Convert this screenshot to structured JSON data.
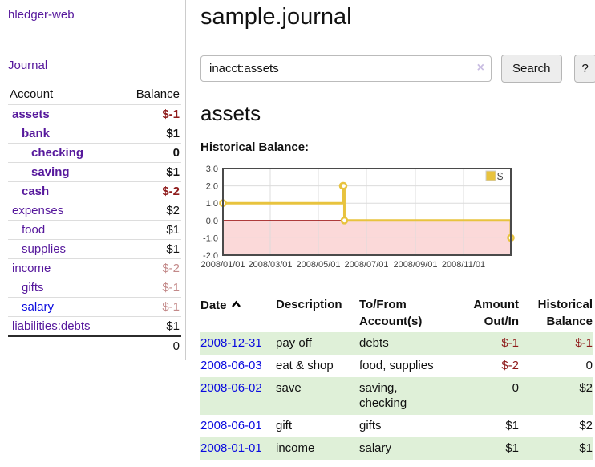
{
  "app": {
    "title": "hledger-web",
    "nav_journal": "Journal"
  },
  "sidebar": {
    "accounts_header": {
      "account": "Account",
      "balance": "Balance"
    },
    "accounts": [
      {
        "name": "assets",
        "indent": 1,
        "bold": true,
        "balance": "$-1"
      },
      {
        "name": "bank",
        "indent": 2,
        "bold": true,
        "balance": "$1"
      },
      {
        "name": "checking",
        "indent": 3,
        "bold": true,
        "balance": "0"
      },
      {
        "name": "saving",
        "indent": 3,
        "bold": true,
        "balance": "$1"
      },
      {
        "name": "cash",
        "indent": 2,
        "bold": true,
        "balance": "$-2"
      },
      {
        "name": "expenses",
        "indent": 1,
        "bold": false,
        "balance": "$2"
      },
      {
        "name": "food",
        "indent": 2,
        "bold": false,
        "balance": "$1"
      },
      {
        "name": "supplies",
        "indent": 2,
        "bold": false,
        "balance": "$1"
      },
      {
        "name": "income",
        "indent": 1,
        "bold": false,
        "balance": "$-2"
      },
      {
        "name": "gifts",
        "indent": 2,
        "bold": false,
        "balance": "$-1"
      },
      {
        "name": "salary",
        "indent": 2,
        "bold": false,
        "balance": "$-1"
      },
      {
        "name": "liabilities:debts",
        "indent": 1,
        "bold": false,
        "balance": "$1"
      }
    ],
    "total_balance": "0"
  },
  "header": {
    "title": "sample.journal"
  },
  "search": {
    "value": "inacct:assets",
    "button_label": "Search",
    "help_label": "?"
  },
  "icons": {
    "clear": "×"
  },
  "account_page": {
    "title": "assets",
    "chart_label": "Historical Balance:"
  },
  "chart_data": {
    "type": "line",
    "step": true,
    "title": "Historical Balance",
    "series": [
      {
        "name": "$",
        "color": "#E8C33E",
        "points": [
          [
            "2008-01-01",
            1
          ],
          [
            "2008-06-01",
            2
          ],
          [
            "2008-06-02",
            2
          ],
          [
            "2008-06-03",
            0
          ],
          [
            "2008-12-31",
            -1
          ]
        ]
      }
    ],
    "x_range": [
      "2008-01-01",
      "2008-12-31"
    ],
    "x_ticks": [
      "2008/01/01",
      "2008/03/01",
      "2008/05/01",
      "2008/07/01",
      "2008/09/01",
      "2008/11/01"
    ],
    "y_ticks": [
      3.0,
      2.0,
      1.0,
      0.0,
      -1.0,
      -2.0
    ],
    "ylim": [
      -2,
      3
    ],
    "grid": true,
    "legend_position": "top-right",
    "colors": {
      "negative_region": "#FBD9D9",
      "zero_line": "#990000",
      "grid": "#DCDCDC",
      "border": "#4A4A4A"
    }
  },
  "transactions": {
    "columns": [
      {
        "lines": [
          "Date"
        ],
        "sorted": "ascending"
      },
      {
        "lines": [
          "Description"
        ]
      },
      {
        "lines": [
          "To/From",
          "Account(s)"
        ]
      },
      {
        "lines": [
          "Amount",
          "Out/In"
        ]
      },
      {
        "lines": [
          "Historical",
          "Balance"
        ]
      }
    ],
    "rows": [
      {
        "date": "2008-12-31",
        "description": "pay off",
        "accounts": [
          "debts"
        ],
        "amount": "$-1",
        "balance": "$-1"
      },
      {
        "date": "2008-06-03",
        "description": "eat & shop",
        "accounts": [
          "food, supplies"
        ],
        "amount": "$-2",
        "balance": "0"
      },
      {
        "date": "2008-06-02",
        "description": "save",
        "accounts": [
          "saving,",
          "checking"
        ],
        "amount": "0",
        "balance": "$2"
      },
      {
        "date": "2008-06-01",
        "description": "gift",
        "accounts": [
          "gifts"
        ],
        "amount": "$1",
        "balance": "$2"
      },
      {
        "date": "2008-01-01",
        "description": "income",
        "accounts": [
          "salary"
        ],
        "amount": "$1",
        "balance": "$1"
      }
    ]
  },
  "colors": {
    "link_purple": "#56189C",
    "link_blue": "#0A0ADF",
    "negative_strong": "#8E1A1A",
    "negative_soft": "#C38989",
    "row_green": "#DFF0D8",
    "chart_line": "#E8C33E"
  }
}
